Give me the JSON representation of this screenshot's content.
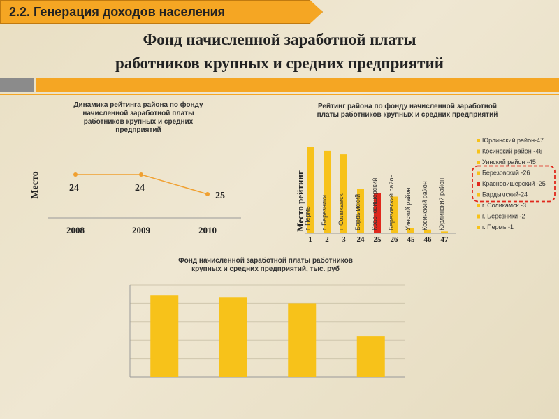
{
  "header": {
    "section": "2.2. Генерация доходов населения",
    "title_line1": "Фонд начисленной заработной платы",
    "title_line2": "работников крупных и средних предприятий"
  },
  "colors": {
    "accent": "#f5a623",
    "bar": "#f7c21a",
    "highlight": "#e0281c",
    "line": "#f0a030"
  },
  "chart_data": [
    {
      "type": "line",
      "title_lines": [
        "Динамика рейтинга района по фонду",
        "начисленной заработной платы",
        "работников крупных и средних",
        "предприятий"
      ],
      "ylabel": "Место",
      "categories": [
        "2008",
        "2009",
        "2010"
      ],
      "values": [
        24,
        24,
        25
      ],
      "value_labels": [
        "24",
        "24",
        "25"
      ],
      "ylim": [
        20,
        27
      ],
      "grid": false
    },
    {
      "type": "bar",
      "title_lines": [
        "Рейтинг района по фонду начисленной заработной",
        "платы работников крупных и средних предприятий"
      ],
      "ylabel": "Место рейтинг",
      "categories": [
        "г. Пермь",
        "г. Березники",
        "г. Соликамск",
        "Бардымский",
        "Красновишерский",
        "Березовский район",
        "Уинский район",
        "Косинский район",
        "Юрлинский район"
      ],
      "x_labels": [
        "1",
        "2",
        "3",
        "24",
        "25",
        "26",
        "45",
        "46",
        "47"
      ],
      "values": [
        47,
        45,
        43,
        24,
        22,
        20,
        3,
        2,
        1
      ],
      "highlight_index": 4,
      "legend": [
        "Юрлинский район-47",
        "Косинский район -46",
        "Уинский район -45",
        "Березовский -26",
        "Красновишерский -25",
        "Бардымский-24",
        "г. Соликамск -3",
        "г. Березники -2",
        "г. Пермь -1"
      ],
      "legend_marker": [
        "bar",
        "bar",
        "bar",
        "bar",
        "highlight",
        "bar",
        "bar",
        "bar",
        "bar"
      ],
      "legend_boxed": [
        3,
        4,
        5
      ],
      "legend_placement": "right"
    },
    {
      "type": "bar",
      "title_lines": [
        "Фонд начисленной заработной платы работников",
        "крупных и средних предприятий, тыс. руб"
      ],
      "categories": [
        "",
        "",
        "",
        ""
      ],
      "values": [
        115,
        112,
        104,
        58
      ],
      "ylim": [
        0,
        130
      ],
      "grid": true
    }
  ]
}
